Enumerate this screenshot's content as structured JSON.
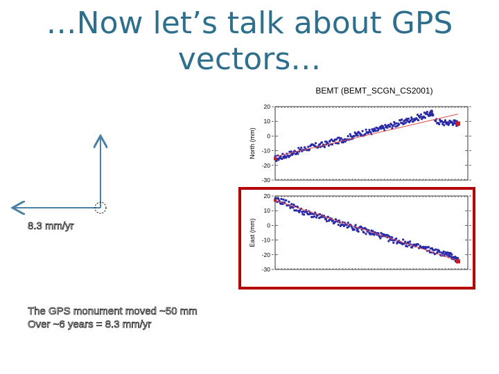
{
  "slide": {
    "title_line1": "…Now let’s talk about GPS",
    "title_line2": "vectors…",
    "rate_label": "8.3 mm/yr",
    "note_line1": "The GPS monument moved ~50 mm",
    "note_line2": "Over ~6 years = 8.3 mm/yr"
  },
  "colors": {
    "title": "#2e6f8e",
    "vector": "#4a7fa6",
    "points": "#2a2aa8",
    "fit": "#e05050",
    "endpoint": "#c81e1e",
    "highlight": "#b40000"
  },
  "chart_data": [
    {
      "type": "scatter",
      "title": "BEMT (BEMT_SCGN_CS2001)",
      "ylabel": "North (mm)",
      "ylim": [
        -30,
        20
      ],
      "yticks": [
        20,
        10,
        0,
        -10,
        -20,
        -30
      ],
      "xlim": [
        0,
        1
      ],
      "grid": false,
      "series": [
        {
          "values": [
            [
              0.0,
              -15.5
            ],
            [
              0.05,
              -13.5
            ],
            [
              0.1,
              -11
            ],
            [
              0.15,
              -9
            ],
            [
              0.2,
              -7
            ],
            [
              0.25,
              -6
            ],
            [
              0.3,
              -4
            ],
            [
              0.35,
              -2.5
            ],
            [
              0.4,
              0
            ],
            [
              0.45,
              2
            ],
            [
              0.5,
              3
            ],
            [
              0.55,
              5
            ],
            [
              0.6,
              7
            ],
            [
              0.65,
              9
            ],
            [
              0.7,
              11
            ],
            [
              0.75,
              13
            ],
            [
              0.8,
              15
            ],
            [
              0.82,
              16
            ],
            [
              0.83,
              10
            ],
            [
              0.88,
              9
            ],
            [
              0.92,
              9.5
            ],
            [
              0.95,
              8.5
            ]
          ]
        },
        {
          "values": [
            [
              0.0,
              -14
            ],
            [
              0.95,
              15
            ]
          ]
        }
      ]
    },
    {
      "type": "scatter",
      "ylabel": "East (mm)",
      "ylim": [
        -30,
        20
      ],
      "yticks": [
        20,
        10,
        0,
        -10,
        -20,
        -30
      ],
      "xlim": [
        0,
        1
      ],
      "grid": false,
      "series": [
        {
          "values": [
            [
              0.0,
              17
            ],
            [
              0.05,
              16
            ],
            [
              0.1,
              12
            ],
            [
              0.15,
              9
            ],
            [
              0.2,
              7
            ],
            [
              0.25,
              5
            ],
            [
              0.3,
              3
            ],
            [
              0.35,
              1
            ],
            [
              0.4,
              -1
            ],
            [
              0.45,
              -3
            ],
            [
              0.5,
              -5
            ],
            [
              0.55,
              -7
            ],
            [
              0.6,
              -9.5
            ],
            [
              0.65,
              -11
            ],
            [
              0.7,
              -13
            ],
            [
              0.75,
              -15
            ],
            [
              0.8,
              -16.5
            ],
            [
              0.85,
              -18.5
            ],
            [
              0.9,
              -20
            ],
            [
              0.93,
              -22
            ],
            [
              0.95,
              -24.5
            ]
          ]
        },
        {
          "values": [
            [
              0.0,
              17
            ],
            [
              0.95,
              -24
            ]
          ]
        }
      ]
    }
  ]
}
